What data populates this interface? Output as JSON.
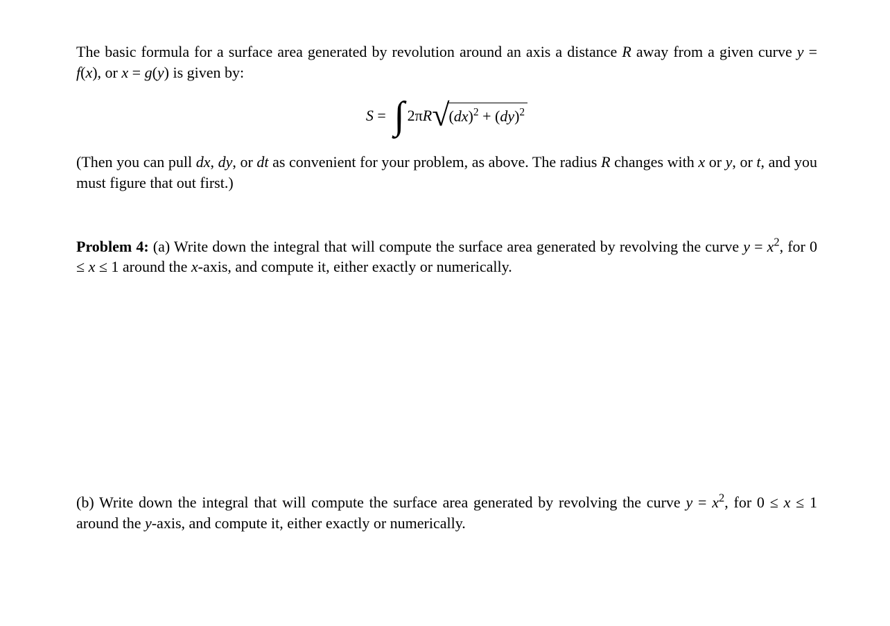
{
  "intro": {
    "l1_a": "The basic formula for a surface area generated by revolution around an axis a distance ",
    "R": "R",
    "l1_b": " away from a given curve ",
    "eq1a": "y",
    "eq1b": " = ",
    "eq1c": "f",
    "eq1d": "(",
    "eq1e": "x",
    "eq1f": "), or ",
    "eq1g": "x",
    "eq1h": " = ",
    "eq1i": "g",
    "eq1j": "(",
    "eq1k": "y",
    "eq1l": ") is given by:"
  },
  "formula": {
    "S": "S",
    "eq": " = ",
    "twopi": "2π",
    "R": "R",
    "dx": "dx",
    "dy": "dy",
    "pow": "2",
    "plus": " + ",
    "lp": "(",
    "rp": ")"
  },
  "note": {
    "a": "(Then you can pull ",
    "dx": "dx",
    "c1": ", ",
    "dy": "dy",
    "c2": ", or ",
    "dt": "dt",
    "b": " as convenient for your problem, as above. The radius ",
    "R": "R",
    "c": " changes with ",
    "x": "x",
    "or": " or ",
    "y": "y",
    "c3": ", or ",
    "t": "t",
    "d": ", and you must figure that out first.)"
  },
  "p4": {
    "label": "Problem 4:",
    "a1": " (a) Write down the integral that will compute the surface area generated by revolving the curve ",
    "y": "y",
    "eq": " = ",
    "x": "x",
    "sq": "2",
    "a2": ", for 0 ≤ ",
    "xv": "x",
    "a3": " ≤ 1 around the ",
    "xax": "x",
    "a4": "-axis, and compute it, either exactly or numerically."
  },
  "p4b": {
    "a1": "(b) Write down the integral that will compute the surface area generated by revolving the curve ",
    "y": "y",
    "eq": " = ",
    "x": "x",
    "sq": "2",
    "a2": ", for 0 ≤ ",
    "xv": "x",
    "a3": " ≤ 1 around the ",
    "yax": "y",
    "a4": "-axis, and compute it, either exactly or numerically."
  }
}
